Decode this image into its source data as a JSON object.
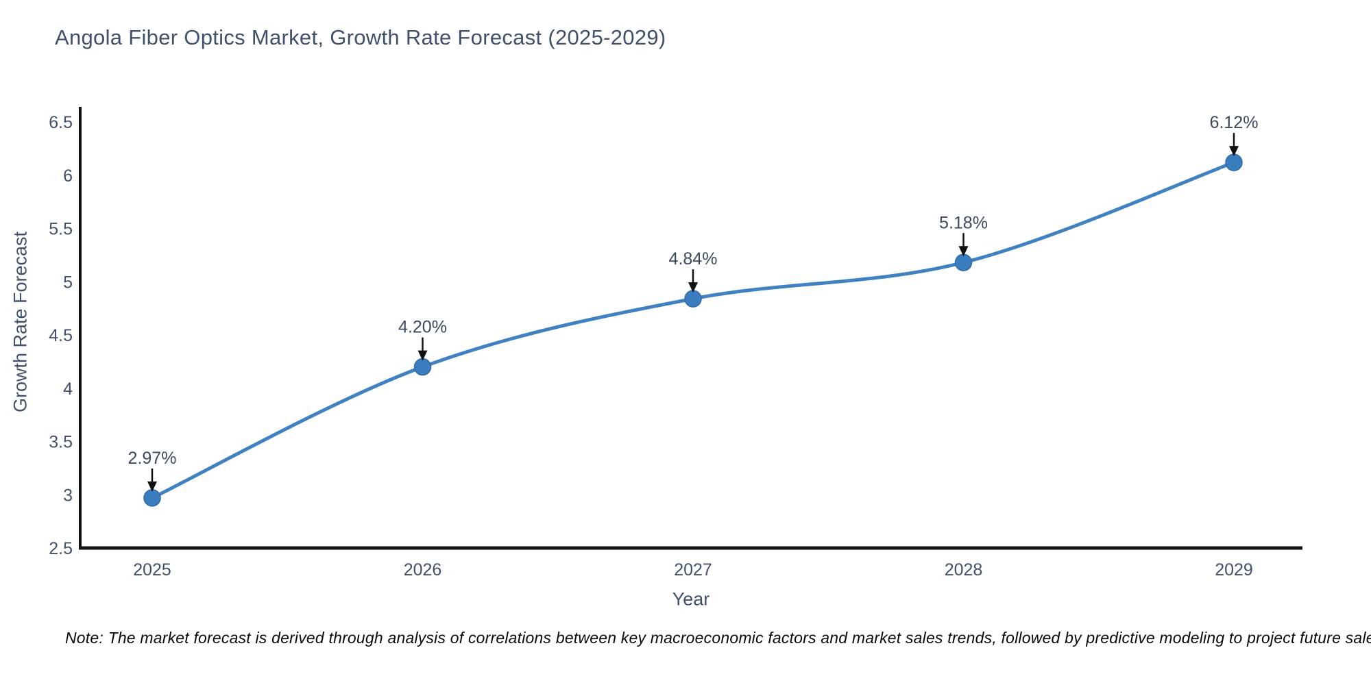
{
  "title": "Angola Fiber Optics Market, Growth Rate Forecast (2025-2029)",
  "note": "Note: The market forecast is derived through analysis of correlations between key macroeconomic factors and market sales trends, followed by predictive modeling to project future sales",
  "chart_data": {
    "type": "line",
    "title": "Angola Fiber Optics Market, Growth Rate Forecast (2025-2029)",
    "xlabel": "Year",
    "ylabel": "Growth Rate Forecast",
    "categories": [
      "2025",
      "2026",
      "2027",
      "2028",
      "2029"
    ],
    "x": [
      2025,
      2026,
      2027,
      2028,
      2029
    ],
    "values": [
      2.97,
      4.2,
      4.84,
      5.18,
      6.12
    ],
    "point_labels": [
      "2.97%",
      "4.20%",
      "4.84%",
      "5.18%",
      "6.12%"
    ],
    "ylim": [
      2.5,
      6.5
    ],
    "ytick_labels": [
      "2.5",
      "3",
      "3.5",
      "4",
      "4.5",
      "5",
      "5.5",
      "6",
      "6.5"
    ],
    "grid": false,
    "legend_position": "none",
    "curve": "spline",
    "colors": {
      "line": "#3f81c1",
      "marker": "#3a7dbf",
      "marker_edge": "#2f6aa6",
      "axis": "#111111",
      "arrow": "#111111",
      "text": "#42506b",
      "annotation_text": "#3c495f",
      "background": "#ffffff"
    }
  }
}
